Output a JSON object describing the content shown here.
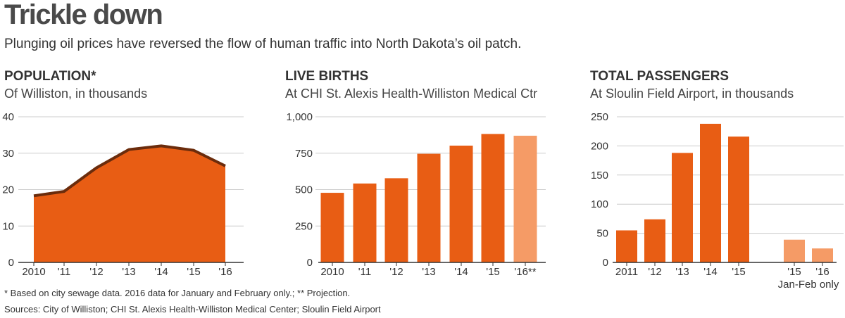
{
  "header": {
    "title": "Trickle down",
    "subtitle": "Plunging oil prices have reversed the flow of human traffic into North Dakota’s oil patch."
  },
  "footer": {
    "note": "* Based on city sewage data. 2016 data for January and February only.; ** Projection.",
    "sources": "Sources: City of Williston; CHI St. Alexis Health-Williston Medical Center; Sloulin Field Airport"
  },
  "colors": {
    "bar": "#e85d14",
    "bar_light": "#f59b66",
    "area_fill": "#e85d14",
    "area_line": "#6b2c0c",
    "grid": "#cccccc",
    "axis": "#333333"
  },
  "chart_data": [
    {
      "type": "area",
      "title": "POPULATION*",
      "subtitle": "Of Williston, in thousands",
      "categories": [
        "2010",
        "'11",
        "'12",
        "'13",
        "'14",
        "'15",
        "'16"
      ],
      "values": [
        18.3,
        19.5,
        26,
        31,
        32,
        30.8,
        26.5
      ],
      "ylim": [
        0,
        40
      ],
      "yticks": [
        0,
        10,
        20,
        30,
        40
      ],
      "ytick_labels": [
        "0",
        "10",
        "20",
        "30",
        "40"
      ],
      "grid": true
    },
    {
      "type": "bar",
      "title": "LIVE BIRTHS",
      "subtitle": "At CHI St. Alexis Health-Williston Medical Ctr",
      "categories": [
        "2010",
        "'11",
        "'12",
        "'13",
        "'14",
        "'15",
        "'16**"
      ],
      "values": [
        478,
        542,
        578,
        746,
        802,
        882,
        870
      ],
      "highlight": [
        false,
        false,
        false,
        false,
        false,
        false,
        true
      ],
      "ylim": [
        0,
        1000
      ],
      "yticks": [
        0,
        250,
        500,
        750,
        1000
      ],
      "ytick_labels": [
        "0",
        "250",
        "500",
        "750",
        "1,000"
      ],
      "grid": true
    },
    {
      "type": "bar",
      "title": "TOTAL PASSENGERS",
      "subtitle": "At Sloulin Field Airport, in thousands",
      "categories": [
        "2011",
        "'12",
        "'13",
        "'14",
        "'15",
        "'15",
        "'16"
      ],
      "values": [
        55,
        74,
        188,
        238,
        216,
        39,
        24
      ],
      "highlight": [
        false,
        false,
        false,
        false,
        false,
        true,
        true
      ],
      "group_label": "Jan-Feb only",
      "ylim": [
        0,
        250
      ],
      "yticks": [
        0,
        50,
        100,
        150,
        200,
        250
      ],
      "ytick_labels": [
        "0",
        "50",
        "100",
        "150",
        "200",
        "250"
      ],
      "grid": true
    }
  ]
}
